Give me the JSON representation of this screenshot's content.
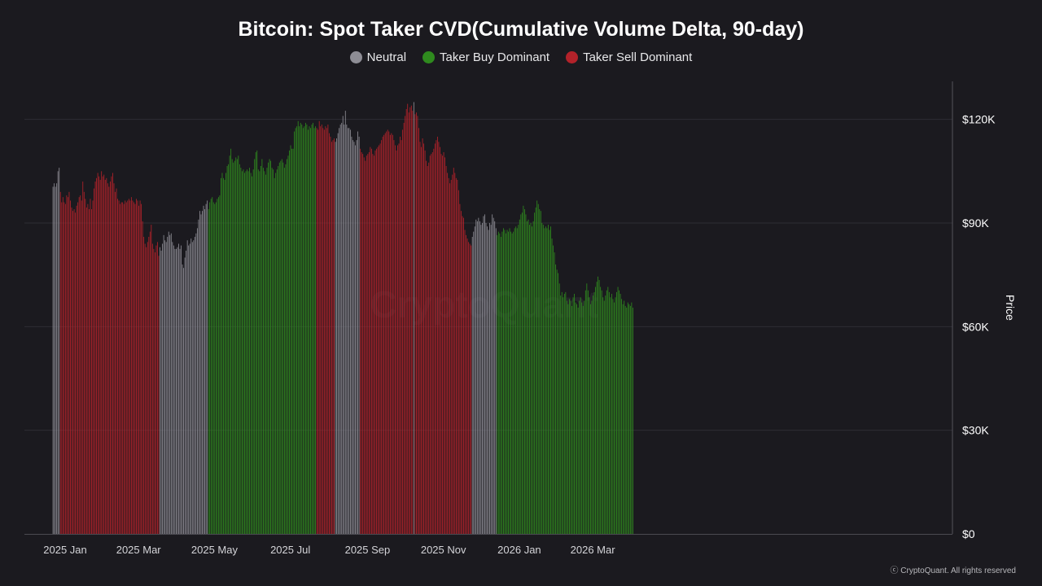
{
  "chart_data": {
    "type": "bar",
    "title": "Bitcoin: Spot Taker CVD(Cumulative Volume Delta, 90-day)",
    "ylabel": "Price",
    "xlabel": "",
    "ylim": [
      0,
      131000
    ],
    "y_ticks": [
      0,
      30000,
      60000,
      90000,
      120000
    ],
    "y_tick_labels": [
      "$0",
      "$30K",
      "$60K",
      "$90K",
      "$120K"
    ],
    "x_tick_labels": [
      "2025 Jan",
      "2025 Mar",
      "2025 May",
      "2025 Jul",
      "2025 Sep",
      "2025 Nov",
      "2026 Jan",
      "2026 Mar"
    ],
    "legend": [
      {
        "name": "Neutral",
        "color": "#8e8d95"
      },
      {
        "name": "Taker Buy Dominant",
        "color": "#2f8a1e"
      },
      {
        "name": "Taker Sell Dominant",
        "color": "#b3222a"
      }
    ],
    "watermark": "CryptoQuant",
    "series": [
      {
        "name": "Neutral",
        "start_date": "2024-12-20",
        "end_date": "2024-12-25",
        "values": [
          100500,
          101500,
          100500,
          101500,
          105000,
          106000
        ]
      },
      {
        "name": "Taker Sell Dominant",
        "start_date": "2024-12-26",
        "end_date": "2025-03-15",
        "values": [
          99000,
          96000,
          97500,
          96000,
          95500,
          98000,
          97500,
          99000,
          96500,
          94500,
          93500,
          94000,
          93000,
          95000,
          96000,
          97500,
          98000,
          96500,
          102000,
          99000,
          97000,
          94500,
          95500,
          94000,
          97000,
          94000,
          96500,
          100000,
          102000,
          103000,
          104500,
          103500,
          102500,
          105000,
          103500,
          104000,
          102500,
          103000,
          101500,
          100500,
          102000,
          103500,
          104500,
          101500,
          99000,
          100000,
          97000,
          96500,
          95500,
          96000,
          96000,
          95500,
          96500,
          96000,
          96500,
          97000,
          96500,
          97500,
          96500,
          96000,
          95500,
          97000,
          96500,
          95000,
          96500,
          95500,
          90500,
          86000,
          84000,
          83000,
          84500,
          86000,
          87500,
          89500,
          84000,
          82500,
          81500,
          83500,
          84500,
          80500
        ]
      },
      {
        "name": "Neutral",
        "start_date": "2025-03-16",
        "end_date": "2025-04-23",
        "values": [
          83000,
          82000,
          84000,
          86500,
          85000,
          84500,
          86000,
          87500,
          86500,
          87000,
          84500,
          83500,
          82500,
          82500,
          83000,
          84000,
          82500,
          83500,
          78000,
          77000,
          80000,
          82000,
          85000,
          83500,
          84000,
          85500,
          84500,
          85000,
          86000,
          87000,
          88500,
          91000,
          93500,
          92500,
          93500,
          95000,
          94000,
          95500,
          96500
        ]
      },
      {
        "name": "Taker Buy Dominant",
        "start_date": "2025-04-24",
        "end_date": "2025-07-19",
        "values": [
          94000,
          96000,
          97000,
          97500,
          96000,
          95500,
          96000,
          97000,
          97500,
          98000,
          103000,
          104500,
          103000,
          102500,
          104500,
          106500,
          107000,
          109500,
          111500,
          108500,
          107500,
          108000,
          109000,
          108500,
          109500,
          107000,
          106000,
          105000,
          105500,
          104500,
          105000,
          105500,
          105000,
          106000,
          104500,
          103500,
          105500,
          108500,
          110500,
          111000,
          105500,
          105000,
          106500,
          108500,
          106000,
          105000,
          104000,
          106000,
          107500,
          108500,
          108000,
          106000,
          105500,
          103000,
          104500,
          105500,
          106500,
          107500,
          108000,
          108500,
          107500,
          106000,
          107000,
          108500,
          109500,
          111000,
          112500,
          111500,
          111500,
          116500,
          117500,
          118000,
          119500,
          118000,
          119000,
          118500,
          117500,
          118000,
          119000,
          118500,
          117000,
          118000,
          117500,
          118500,
          119000,
          117500,
          118000
        ]
      },
      {
        "name": "Taker Sell Dominant",
        "start_date": "2025-07-20",
        "end_date": "2025-08-03",
        "values": [
          117500,
          117000,
          119500,
          118000,
          118500,
          117500,
          117000,
          118000,
          117500,
          118500,
          116000,
          115000,
          113500,
          114000,
          114500
        ]
      },
      {
        "name": "Neutral",
        "start_date": "2025-08-04",
        "end_date": "2025-08-23",
        "values": [
          113500,
          114500,
          116000,
          117500,
          118500,
          119000,
          121000,
          118500,
          122500,
          118500,
          117500,
          117500,
          117000,
          115000,
          114000,
          113500,
          112500,
          114000,
          116500,
          115000
        ]
      },
      {
        "name": "Taker Sell Dominant",
        "start_date": "2025-08-24",
        "end_date": "2025-10-05",
        "values": [
          111500,
          110500,
          110000,
          109000,
          108000,
          109500,
          110000,
          110500,
          112000,
          111500,
          110000,
          109500,
          111000,
          111500,
          112000,
          112500,
          113000,
          114000,
          115000,
          115500,
          116000,
          116500,
          117000,
          116500,
          115500,
          116000,
          115500,
          114000,
          112500,
          111000,
          112500,
          113000,
          115000,
          114000,
          117000,
          119000,
          121000,
          123000,
          124500,
          122000,
          123500,
          124000,
          122500
        ]
      },
      {
        "name": "Neutral",
        "start_date": "2025-10-06",
        "end_date": "2025-10-06",
        "values": [
          125000
        ]
      },
      {
        "name": "Taker Sell Dominant",
        "start_date": "2025-10-07",
        "end_date": "2025-11-21",
        "values": [
          121500,
          122000,
          121000,
          117500,
          113500,
          112000,
          114500,
          113000,
          111000,
          108000,
          106500,
          107500,
          109500,
          110000,
          110500,
          111500,
          113000,
          114000,
          115000,
          113500,
          112000,
          110000,
          109500,
          110500,
          109000,
          106500,
          104500,
          103000,
          101500,
          102500,
          104000,
          106000,
          104500,
          103000,
          102500,
          99500,
          95500,
          93500,
          92000,
          91500,
          88000,
          86500,
          85500,
          84500,
          84000,
          83500
        ]
      },
      {
        "name": "Neutral",
        "start_date": "2025-11-22",
        "end_date": "2025-12-11",
        "values": [
          86000,
          87500,
          89000,
          91000,
          90500,
          91500,
          90500,
          89500,
          90000,
          92000,
          92500,
          90000,
          89000,
          88000,
          90000,
          89500,
          92500,
          91500,
          90500,
          88500
        ]
      },
      {
        "name": "Taker Buy Dominant",
        "start_date": "2025-12-12",
        "end_date": "2026-03-31",
        "values": [
          86500,
          87500,
          87000,
          86000,
          87500,
          88500,
          88000,
          87000,
          88000,
          87500,
          88500,
          87500,
          87000,
          87500,
          88500,
          89000,
          88500,
          89500,
          91000,
          92500,
          93000,
          95000,
          94000,
          92500,
          90500,
          91000,
          89500,
          90000,
          89000,
          90500,
          93000,
          94500,
          96500,
          95500,
          94000,
          93500,
          90000,
          89500,
          88500,
          89000,
          88500,
          89500,
          88000,
          89000,
          85500,
          83500,
          81500,
          78000,
          76500,
          75500,
          72500,
          69000,
          70000,
          68500,
          69500,
          70000,
          67500,
          66500,
          68000,
          67500,
          66000,
          68500,
          69500,
          67000,
          66500,
          65500,
          67500,
          68500,
          67000,
          66000,
          67500,
          70500,
          72500,
          70500,
          68500,
          66500,
          67500,
          69000,
          70000,
          71500,
          73000,
          74500,
          73500,
          71500,
          70500,
          68500,
          67500,
          69000,
          70500,
          71500,
          70000,
          68500,
          69500,
          68000,
          67000,
          68500,
          70000,
          71500,
          70500,
          69500,
          68000,
          66500,
          67500,
          66000,
          65500,
          67000,
          66500,
          66000,
          67000,
          65500
        ]
      }
    ]
  },
  "copyright": "ⓒ CryptoQuant. All rights reserved"
}
